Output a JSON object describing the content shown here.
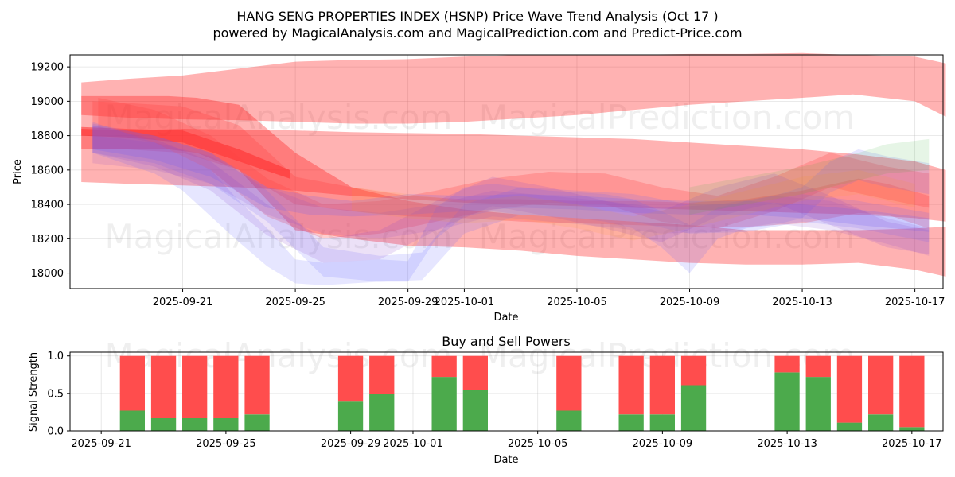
{
  "chart_data": [
    {
      "type": "area",
      "title_line1": "HANG SENG PROPERTIES INDEX (HSNP) Price Wave Trend Analysis (Oct 17 )",
      "title_line2": "powered by MagicalAnalysis.com and MagicalPrediction.com and Predict-Price.com",
      "xlabel": "Date",
      "ylabel": "Price",
      "x_start": "2025-09-17",
      "x_end": "2025-10-18",
      "ylim": [
        17910,
        19270
      ],
      "y_ticks": [
        18000,
        18200,
        18400,
        18600,
        18800,
        19000,
        19200
      ],
      "x_ticks": [
        {
          "day": 4,
          "label": "2025-09-21"
        },
        {
          "day": 8,
          "label": "2025-09-25"
        },
        {
          "day": 12,
          "label": "2025-09-29"
        },
        {
          "day": 14,
          "label": "2025-10-01"
        },
        {
          "day": 18,
          "label": "2025-10-05"
        },
        {
          "day": 22,
          "label": "2025-10-09"
        },
        {
          "day": 26,
          "label": "2025-10-13"
        },
        {
          "day": 30,
          "label": "2025-10-17"
        }
      ],
      "watermarks": [
        "MagicalAnalysis.com",
        "MagicalPrediction.com"
      ],
      "bands": [
        {
          "color": "#ff0000",
          "opacity": 0.3,
          "x": [
            0.4,
            2,
            4,
            6,
            8,
            10,
            12,
            14,
            16,
            18,
            20,
            22,
            24,
            26,
            27.8,
            30,
            31.1
          ],
          "upper": [
            19110,
            19130,
            19150,
            19190,
            19230,
            19240,
            19245,
            19260,
            19270,
            19270,
            19270,
            19275,
            19275,
            19280,
            19270,
            19260,
            19220
          ],
          "lower": [
            18920,
            18905,
            18895,
            18890,
            18880,
            18870,
            18870,
            18880,
            18900,
            18920,
            18950,
            18980,
            19000,
            19020,
            19040,
            19000,
            18910
          ]
        },
        {
          "color": "#ff0000",
          "opacity": 0.3,
          "x": [
            0.4,
            2,
            4,
            6,
            8,
            10,
            12,
            14,
            16,
            18,
            20,
            22,
            24,
            26,
            28,
            30,
            31.1
          ],
          "upper": [
            18840,
            18830,
            18840,
            18835,
            18830,
            18820,
            18815,
            18810,
            18800,
            18790,
            18780,
            18760,
            18740,
            18720,
            18690,
            18650,
            18600
          ],
          "lower": [
            18530,
            18520,
            18510,
            18500,
            18480,
            18450,
            18430,
            18410,
            18400,
            18390,
            18380,
            18370,
            18360,
            18350,
            18340,
            18320,
            18300
          ]
        },
        {
          "color": "#ff0000",
          "opacity": 0.3,
          "x": [
            0.4,
            2,
            3.5,
            4.5,
            6,
            8,
            10,
            12,
            14,
            16,
            18,
            20,
            22,
            24,
            26,
            28,
            30,
            31.1
          ],
          "upper": [
            19030,
            19030,
            19030,
            19020,
            18980,
            18700,
            18500,
            18420,
            18370,
            18340,
            18320,
            18300,
            18280,
            18250,
            18250,
            18250,
            18260,
            18270
          ],
          "lower": [
            18720,
            18720,
            18720,
            18700,
            18600,
            18250,
            18200,
            18160,
            18150,
            18130,
            18100,
            18080,
            18060,
            18050,
            18050,
            18060,
            18020,
            17980
          ]
        },
        {
          "color": "#ff0000",
          "opacity": 0.4,
          "x": [
            0.4,
            2,
            4,
            6,
            7.8
          ],
          "upper": [
            18850,
            18840,
            18830,
            18720,
            18600
          ],
          "lower": [
            18800,
            18790,
            18760,
            18650,
            18550
          ]
        },
        {
          "color": "#ff4040",
          "opacity": 0.28,
          "x": [
            0.8,
            2,
            4,
            6,
            8,
            10,
            12,
            14,
            16,
            18,
            20,
            22,
            24,
            26,
            28,
            29,
            30.5
          ],
          "upper": [
            19000,
            18990,
            18970,
            18860,
            18560,
            18500,
            18450,
            18430,
            18430,
            18420,
            18420,
            18410,
            18430,
            18480,
            18550,
            18520,
            18450
          ],
          "lower": [
            18720,
            18720,
            18700,
            18600,
            18400,
            18360,
            18330,
            18320,
            18300,
            18290,
            18280,
            18270,
            18270,
            18290,
            18350,
            18340,
            18260
          ]
        },
        {
          "color": "#ff4040",
          "opacity": 0.25,
          "x": [
            1,
            3,
            5,
            7,
            9,
            11,
            13,
            15,
            17,
            19,
            21,
            23,
            25,
            27,
            29,
            30.5
          ],
          "upper": [
            19020,
            18950,
            18800,
            18550,
            18400,
            18420,
            18480,
            18550,
            18590,
            18580,
            18500,
            18450,
            18560,
            18700,
            18620,
            18580
          ],
          "lower": [
            18820,
            18760,
            18600,
            18330,
            18200,
            18230,
            18300,
            18370,
            18410,
            18400,
            18300,
            18260,
            18360,
            18500,
            18430,
            18380
          ]
        },
        {
          "color": "#6666ff",
          "opacity": 0.16,
          "x": [
            0.8,
            3,
            4,
            5,
            6,
            7,
            8,
            9,
            10,
            11,
            12,
            13,
            14,
            15,
            16,
            17,
            18,
            19,
            20,
            21,
            22,
            23,
            24,
            25,
            26,
            27,
            28,
            29,
            30.5
          ],
          "upper": [
            18880,
            18760,
            18680,
            18600,
            18420,
            18260,
            18080,
            18060,
            18070,
            18080,
            18070,
            18380,
            18500,
            18520,
            18500,
            18480,
            18470,
            18460,
            18430,
            18360,
            18280,
            18380,
            18420,
            18450,
            18500,
            18650,
            18720,
            18680,
            18640
          ],
          "lower": [
            18700,
            18580,
            18480,
            18330,
            18180,
            18040,
            17940,
            17930,
            17940,
            17950,
            17950,
            18200,
            18330,
            18360,
            18340,
            18330,
            18320,
            18300,
            18260,
            18150,
            18000,
            18200,
            18260,
            18280,
            18320,
            18470,
            18540,
            18500,
            18460
          ]
        },
        {
          "color": "#6666ff",
          "opacity": 0.16,
          "x": [
            0.8,
            3,
            5,
            7,
            9,
            11,
            12.5,
            14,
            16,
            18,
            20,
            22,
            24,
            26,
            28,
            30.5
          ],
          "upper": [
            18860,
            18800,
            18700,
            18480,
            18150,
            18100,
            18120,
            18400,
            18500,
            18480,
            18460,
            18400,
            18400,
            18460,
            18420,
            18350
          ],
          "lower": [
            18700,
            18640,
            18520,
            18300,
            17980,
            17950,
            17960,
            18230,
            18340,
            18320,
            18300,
            18230,
            18240,
            18300,
            18260,
            18180
          ]
        },
        {
          "color": "#6666ff",
          "opacity": 0.2,
          "x": [
            0.8,
            3,
            5,
            7,
            8.5,
            10,
            12,
            14,
            16,
            18,
            20,
            22,
            24,
            26,
            28,
            30.5
          ],
          "upper": [
            18870,
            18800,
            18700,
            18500,
            18450,
            18420,
            18460,
            18450,
            18460,
            18450,
            18430,
            18420,
            18420,
            18400,
            18370,
            18320
          ],
          "lower": [
            18720,
            18660,
            18560,
            18380,
            18340,
            18330,
            18340,
            18360,
            18380,
            18370,
            18350,
            18340,
            18340,
            18320,
            18280,
            18240
          ]
        },
        {
          "color": "#8844cc",
          "opacity": 0.16,
          "x": [
            0.8,
            3,
            5,
            7,
            9,
            11,
            13,
            15,
            17,
            19,
            21,
            23,
            25,
            27,
            29,
            30.5
          ],
          "upper": [
            18860,
            18780,
            18650,
            18400,
            18200,
            18250,
            18420,
            18560,
            18500,
            18420,
            18360,
            18500,
            18580,
            18450,
            18300,
            18250
          ],
          "lower": [
            18700,
            18620,
            18480,
            18220,
            18060,
            18080,
            18250,
            18390,
            18330,
            18260,
            18180,
            18330,
            18410,
            18280,
            18150,
            18110
          ]
        },
        {
          "color": "#8844cc",
          "opacity": 0.14,
          "x": [
            0.8,
            3,
            5,
            7,
            9,
            11,
            13,
            15,
            17,
            19,
            21,
            23,
            25,
            27,
            29,
            30.5
          ],
          "upper": [
            18800,
            18760,
            18680,
            18500,
            18380,
            18350,
            18400,
            18480,
            18450,
            18420,
            18380,
            18400,
            18450,
            18420,
            18320,
            18260
          ],
          "lower": [
            18640,
            18600,
            18520,
            18340,
            18230,
            18200,
            18250,
            18330,
            18300,
            18270,
            18230,
            18240,
            18290,
            18250,
            18170,
            18100
          ]
        },
        {
          "color": "#33aa33",
          "opacity": 0.12,
          "x": [
            22,
            24,
            26,
            28,
            29,
            30.5
          ],
          "upper": [
            18500,
            18560,
            18620,
            18700,
            18750,
            18780
          ],
          "lower": [
            18340,
            18400,
            18460,
            18540,
            18580,
            18600
          ]
        },
        {
          "color": "#ff9900",
          "opacity": 0.1,
          "x": [
            10,
            12,
            14,
            16,
            18,
            20,
            22,
            24,
            26,
            28,
            30
          ],
          "upper": [
            18500,
            18460,
            18420,
            18450,
            18400,
            18330,
            18400,
            18480,
            18560,
            18600,
            18520
          ],
          "lower": [
            18360,
            18320,
            18290,
            18310,
            18260,
            18190,
            18260,
            18340,
            18420,
            18460,
            18380
          ]
        }
      ]
    },
    {
      "type": "bar",
      "title": "Buy and Sell Powers",
      "xlabel": "Date",
      "ylabel": "Signal Strength",
      "x_start": "2025-09-20",
      "x_end": "2025-10-18",
      "ylim": [
        0,
        1.05
      ],
      "y_ticks": [
        0.0,
        0.5,
        1.0
      ],
      "y_tick_labels": [
        "0.0",
        "0.5",
        "1.0"
      ],
      "x_ticks": [
        {
          "day": 1,
          "label": "2025-09-21"
        },
        {
          "day": 5,
          "label": "2025-09-25"
        },
        {
          "day": 9,
          "label": "2025-09-29"
        },
        {
          "day": 11,
          "label": "2025-10-01"
        },
        {
          "day": 15,
          "label": "2025-10-05"
        },
        {
          "day": 19,
          "label": "2025-10-09"
        },
        {
          "day": 23,
          "label": "2025-10-13"
        },
        {
          "day": 27,
          "label": "2025-10-17"
        }
      ],
      "buy_color": "#4caa4c",
      "sell_color": "#ff4d4d",
      "series": [
        {
          "name": "buy",
          "day": [
            2,
            3,
            4,
            5,
            6,
            9,
            10,
            12,
            13,
            16,
            18,
            19,
            20,
            23,
            24,
            25,
            26,
            27
          ],
          "values": [
            0.27,
            0.17,
            0.17,
            0.17,
            0.22,
            0.39,
            0.49,
            0.72,
            0.55,
            0.27,
            0.22,
            0.22,
            0.61,
            0.78,
            0.72,
            0.11,
            0.22,
            0.05
          ]
        },
        {
          "name": "sell",
          "day": [
            2,
            3,
            4,
            5,
            6,
            9,
            10,
            12,
            13,
            16,
            18,
            19,
            20,
            23,
            24,
            25,
            26,
            27
          ],
          "values": [
            0.73,
            0.83,
            0.83,
            0.83,
            0.78,
            0.61,
            0.51,
            0.28,
            0.45,
            0.73,
            0.78,
            0.78,
            0.39,
            0.22,
            0.28,
            0.89,
            0.78,
            0.95
          ]
        }
      ],
      "watermarks": [
        "MagicalAnalysis.com",
        "MagicalPrediction.com"
      ]
    }
  ]
}
